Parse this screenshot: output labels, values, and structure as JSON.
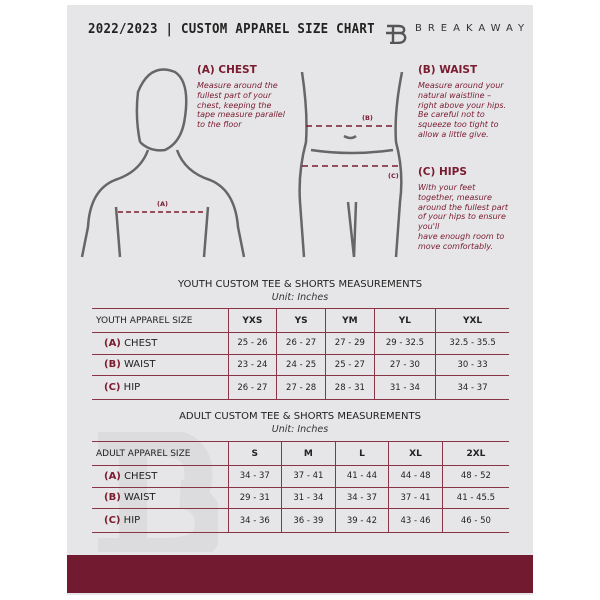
{
  "header": {
    "title": "2022/2023  |  CUSTOM APPAREL SIZE CHART",
    "brand": "BREAKAWAY"
  },
  "measure": {
    "chest": {
      "heading": "(A) CHEST",
      "mark": "(A)",
      "text": [
        "Measure around the",
        "fullest part of your",
        "chest, keeping the",
        "tape measure parallel",
        "to the floor"
      ]
    },
    "waist": {
      "heading": "(B) WAIST",
      "mark": "(B)",
      "text": [
        "Measure around your",
        "natural waistline –",
        "right above your hips.",
        "Be careful not to",
        "squeeze too tight to",
        "allow a little give."
      ]
    },
    "hips": {
      "heading": "(C) HIPS",
      "mark": "(C)",
      "text": [
        "With your feet",
        "together, measure",
        "around the fullest part",
        "of your hips to ensure",
        "you'll",
        "have enough room to",
        "move comfortably."
      ]
    }
  },
  "youth": {
    "title": "YOUTH CUSTOM TEE & SHORTS MEASUREMENTS",
    "unit": "Unit: Inches",
    "header": [
      "YOUTH APPAREL SIZE",
      "YXS",
      "YS",
      "YM",
      "YL",
      "YXL"
    ],
    "rows": [
      {
        "tag": "(A)",
        "label": "CHEST",
        "values": [
          "25 - 26",
          "26 - 27",
          "27 - 29",
          "29 - 32.5",
          "32.5 - 35.5"
        ]
      },
      {
        "tag": "(B)",
        "label": "WAIST",
        "values": [
          "23 - 24",
          "24 - 25",
          "25 - 27",
          "27 - 30",
          "30 - 33"
        ]
      },
      {
        "tag": "(C)",
        "label": "HIP",
        "values": [
          "26 - 27",
          "27 - 28",
          "28 - 31",
          "31 - 34",
          "34 - 37"
        ]
      }
    ]
  },
  "adult": {
    "title": "ADULT CUSTOM TEE & SHORTS MEASUREMENTS",
    "unit": "Unit: Inches",
    "header": [
      "ADULT APPAREL SIZE",
      "S",
      "M",
      "L",
      "XL",
      "2XL"
    ],
    "rows": [
      {
        "tag": "(A)",
        "label": "CHEST",
        "values": [
          "34 - 37",
          "37 - 41",
          "41 - 44",
          "44 - 48",
          "48 - 52"
        ]
      },
      {
        "tag": "(B)",
        "label": "WAIST",
        "values": [
          "29 - 31",
          "31 - 34",
          "34 - 37",
          "37 - 41",
          "41 - 45.5"
        ]
      },
      {
        "tag": "(C)",
        "label": "HIP",
        "values": [
          "34 - 36",
          "36 - 39",
          "39 - 42",
          "43 - 46",
          "46 - 50"
        ]
      }
    ]
  },
  "colors": {
    "accent": "#721b30",
    "panel": "#e6e6e8"
  }
}
